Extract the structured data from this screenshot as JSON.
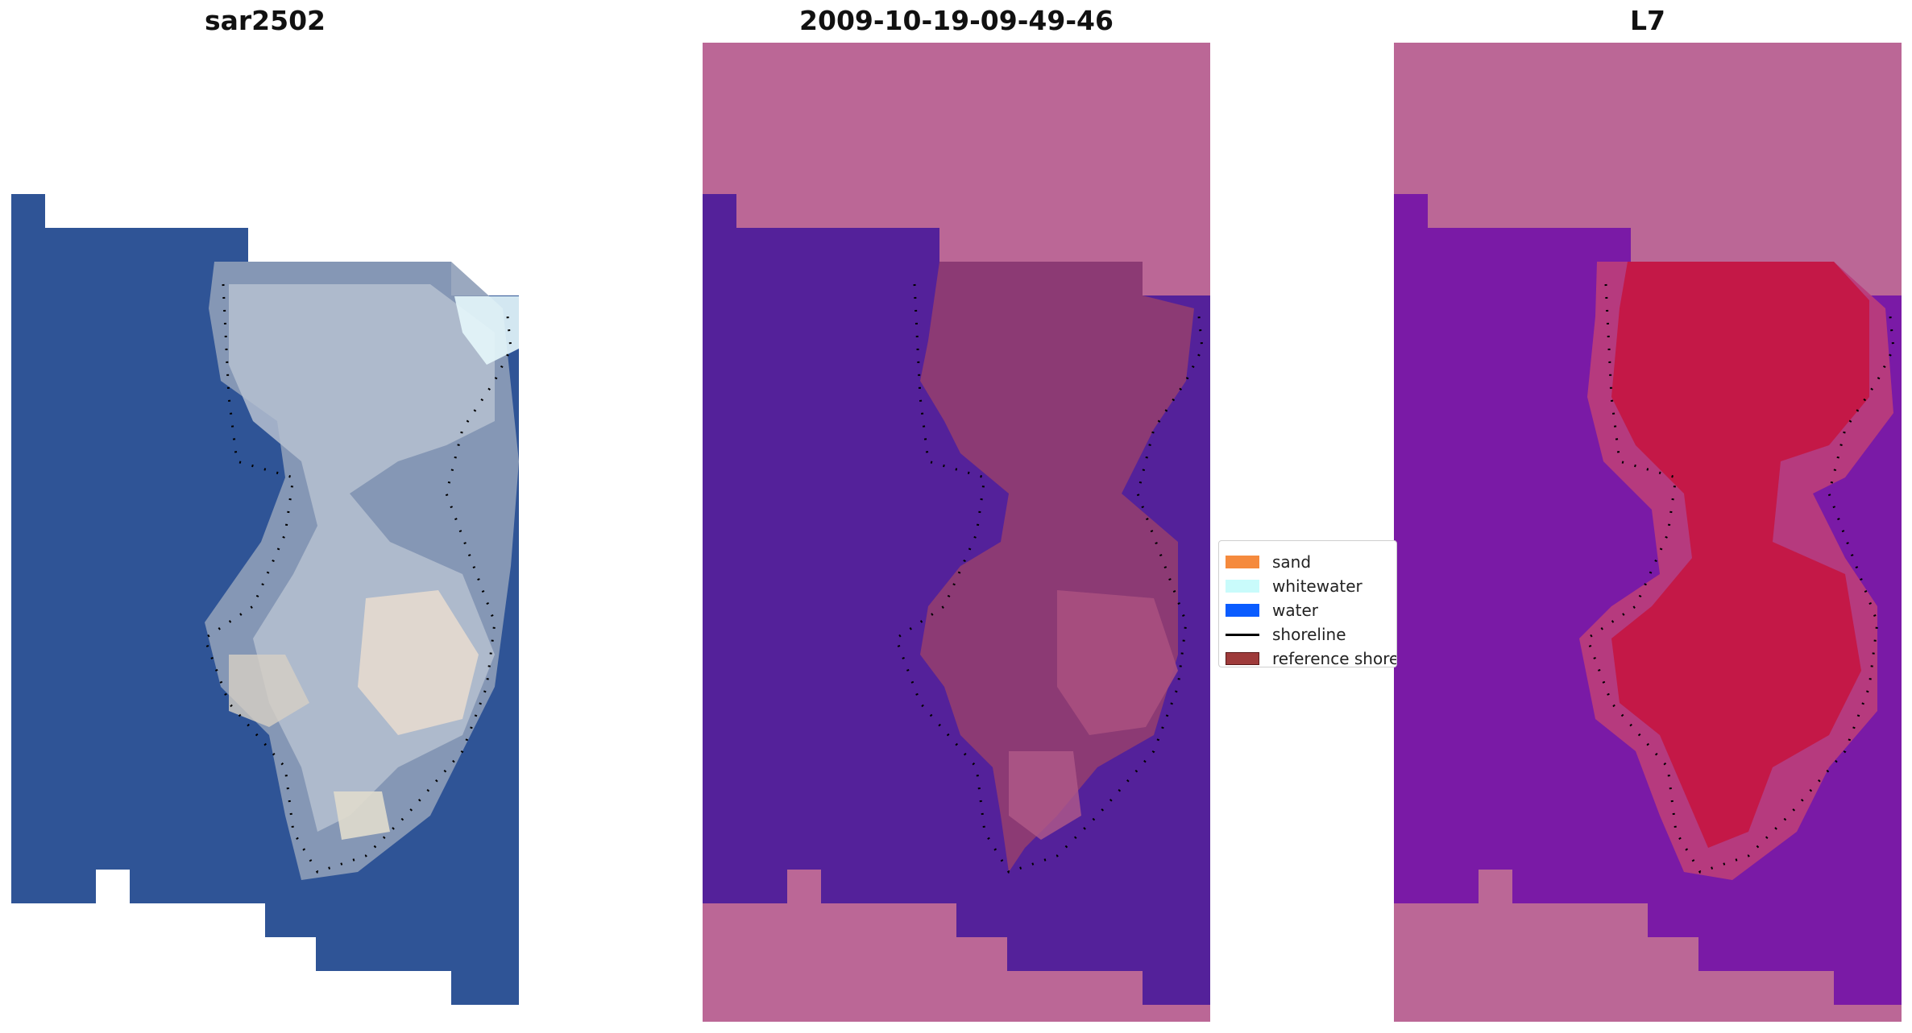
{
  "panels": [
    {
      "title": "sar2502"
    },
    {
      "title": "2009-10-19-09-49-46"
    },
    {
      "title": "L7"
    }
  ],
  "legend": {
    "items": [
      {
        "label": "sand",
        "color": "#f58a3d",
        "type": "patch"
      },
      {
        "label": "whitewater",
        "color": "#c9fbfb",
        "type": "patch"
      },
      {
        "label": "water",
        "color": "#0a5cff",
        "type": "patch"
      },
      {
        "label": "shoreline",
        "color": "#000000",
        "type": "line"
      },
      {
        "label": "reference shoreline",
        "color": "#9e3a3a",
        "type": "patch"
      }
    ]
  },
  "colors": {
    "rgb_water": "#2f5496",
    "rgb_land": "#a8b4c8",
    "mask_nodata": "#bb6796",
    "mask_water": "#54219a",
    "mask_land": "#8c3a74",
    "index_water": "#7a1aa6",
    "index_land": "#c41847"
  }
}
